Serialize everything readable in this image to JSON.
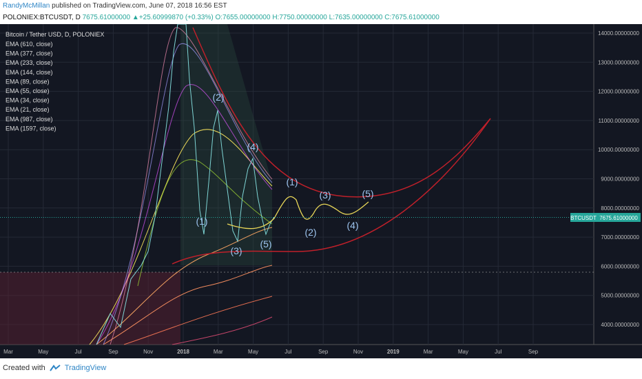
{
  "header": {
    "author": "RandyMcMillan",
    "published": "published on TradingView.com, June 07, 2018 16:56 EST",
    "symbol": "POLONIEX:BTCUSDT, D",
    "last": "7675.61000000",
    "change": "+25.60999870 (+0.33%)",
    "open": "O:7655.00000000",
    "high": "H:7750.00000000",
    "low": "L:7635.00000000",
    "close": "C:7675.61000000"
  },
  "legend": {
    "title": "Bitcoin / Tether USD, D, POLONIEX",
    "studies": [
      "EMA (610, close)",
      "EMA (377, close)",
      "EMA (233, close)",
      "EMA (144, close)",
      "EMA (89, close)",
      "EMA (55, close)",
      "EMA (34, close)",
      "EMA (21, close)",
      "EMA (987, close)",
      "EMA (1597, close)"
    ]
  },
  "price_axis": {
    "ticks": [
      "14000.00000000",
      "13000.00000000",
      "12000.00000000",
      "11000.00000000",
      "10000.00000000",
      "9000.00000000",
      "8000.00000000",
      "7000.00000000",
      "6000.00000000",
      "5000.00000000",
      "4000.00000000"
    ],
    "marker_symbol": "BTCUSDT",
    "marker_price": "7675.61000000"
  },
  "time_axis": {
    "ticks": [
      "Mar",
      "May",
      "Jul",
      "Sep",
      "Nov",
      "2018",
      "Mar",
      "May",
      "Jul",
      "Sep",
      "Nov",
      "2019",
      "Mar",
      "May",
      "Jul",
      "Sep"
    ]
  },
  "wave_labels": [
    "(1)",
    "(2)",
    "(3)",
    "(4)",
    "(5)",
    "(1)",
    "(2)",
    "(3)",
    "(4)",
    "(5)"
  ],
  "footer": {
    "created": "Created with",
    "brand": "TradingView"
  }
}
